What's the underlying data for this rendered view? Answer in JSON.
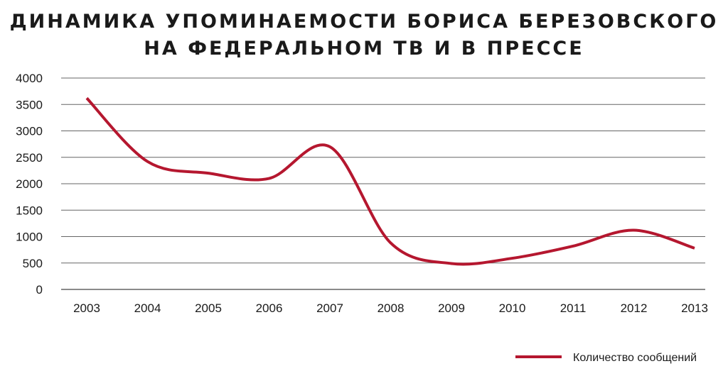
{
  "chart_data": {
    "type": "line",
    "title": [
      "ДИНАМИКА УПОМИНАЕМОСТИ БОРИСА БЕРЕЗОВСКОГО",
      "НА ФЕДЕРАЛЬНОМ ТВ И В ПРЕССЕ"
    ],
    "xlabel": "",
    "ylabel": "",
    "x": [
      "2003",
      "2004",
      "2005",
      "2006",
      "2007",
      "2008",
      "2009",
      "2010",
      "2011",
      "2012",
      "2013"
    ],
    "series": [
      {
        "name": "Количество сообщений",
        "color": "#b5172f",
        "values": [
          3620,
          2420,
          2200,
          2100,
          2700,
          880,
          490,
          590,
          820,
          1120,
          780
        ]
      }
    ],
    "ylim": [
      0,
      4000
    ],
    "yticks": [
      "0",
      "500",
      "1000",
      "1500",
      "2000",
      "2500",
      "3000",
      "3500",
      "4000"
    ],
    "grid": "horizontal",
    "legend_position": "bottom-right"
  }
}
